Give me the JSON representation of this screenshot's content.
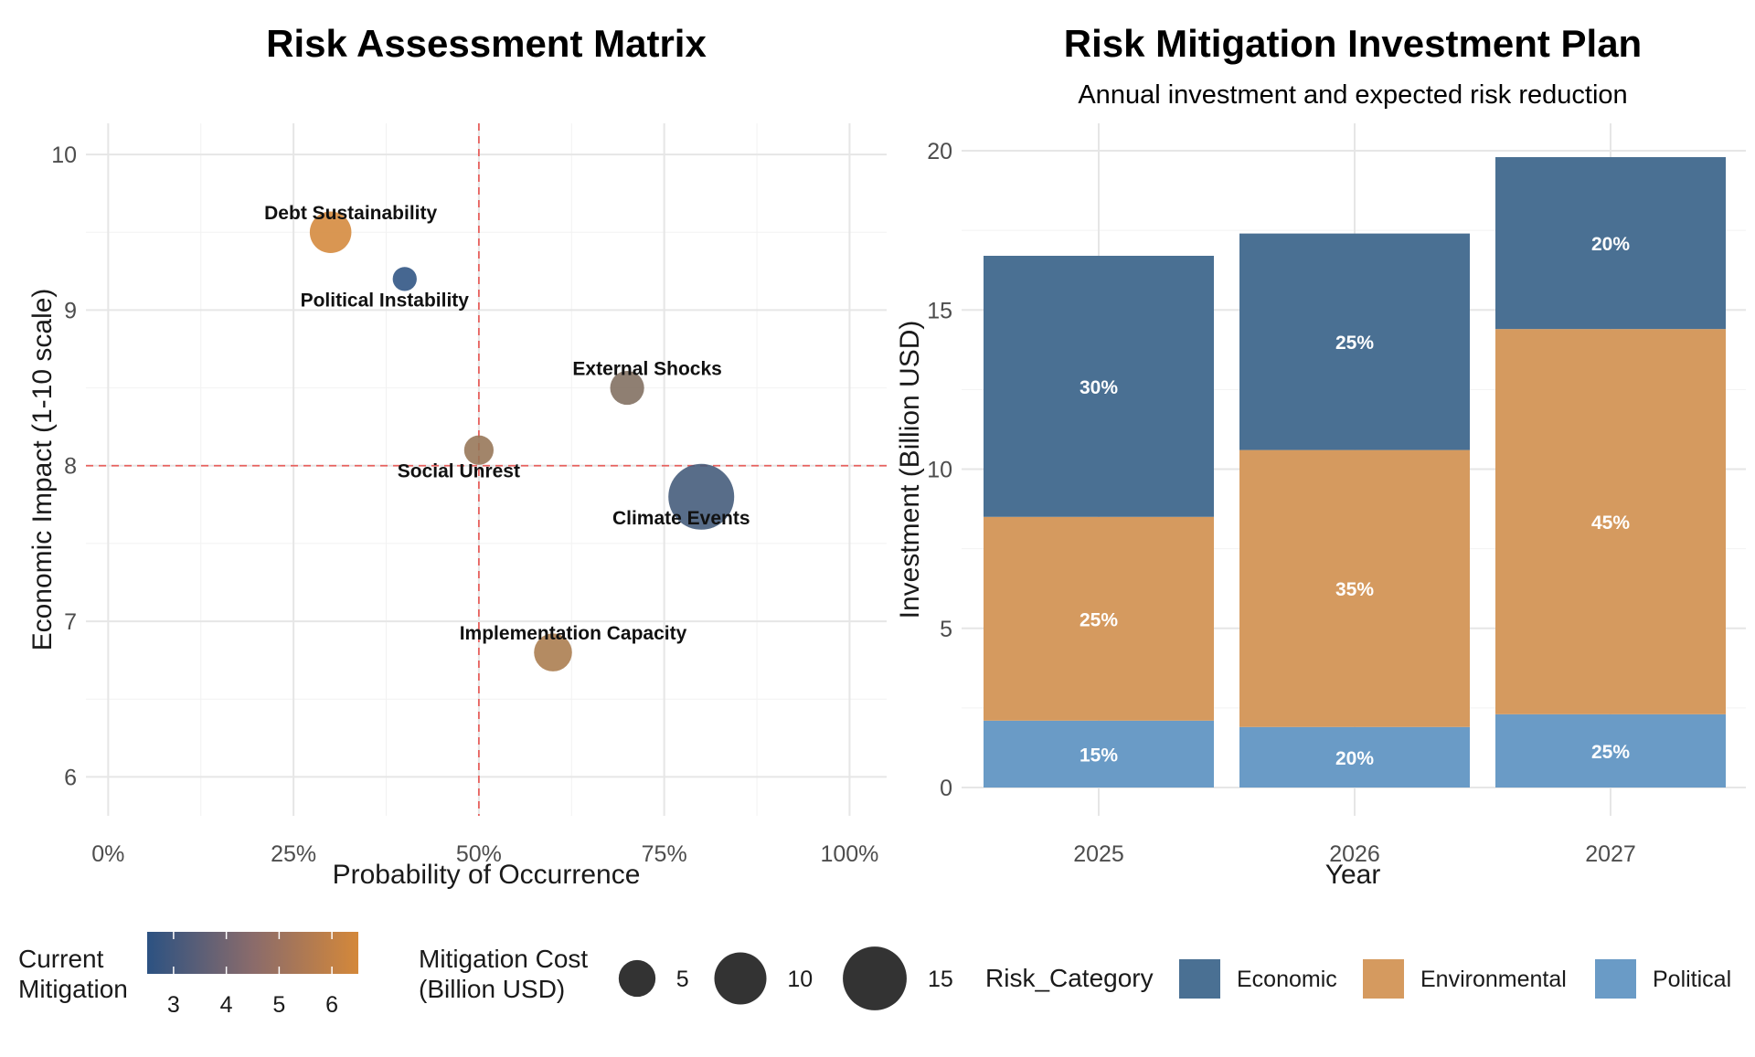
{
  "chart_data": [
    {
      "type": "scatter",
      "title": "Risk Assessment Matrix",
      "xlabel": "Probability of Occurrence",
      "ylabel": "Economic Impact (1-10 scale)",
      "xlim": [
        -0.03,
        1.05
      ],
      "ylim": [
        5.75,
        10.2
      ],
      "x_ticks": [
        0,
        0.25,
        0.5,
        0.75,
        1.0
      ],
      "x_tick_labels": [
        "0%",
        "25%",
        "50%",
        "75%",
        "100%"
      ],
      "y_ticks": [
        6,
        7,
        8,
        9,
        10
      ],
      "y_tick_labels": [
        "6",
        "7",
        "8",
        "9",
        "10"
      ],
      "reference_lines": {
        "x": 0.5,
        "y": 8,
        "color": "#e8625f",
        "style": "dashed"
      },
      "points": [
        {
          "label": "Debt Sustainability",
          "x": 0.3,
          "y": 9.5,
          "cost": 6,
          "mitigation": 6.5,
          "label_pos": "above"
        },
        {
          "label": "Political Instability",
          "x": 0.4,
          "y": 9.2,
          "cost": 2,
          "mitigation": 2.5,
          "label_pos": "below"
        },
        {
          "label": "External Shocks",
          "x": 0.7,
          "y": 8.5,
          "cost": 4,
          "mitigation": 4.5,
          "label_pos": "above"
        },
        {
          "label": "Social Unrest",
          "x": 0.5,
          "y": 8.1,
          "cost": 3,
          "mitigation": 5.0,
          "label_pos": "below"
        },
        {
          "label": "Climate Events",
          "x": 0.8,
          "y": 7.8,
          "cost": 15,
          "mitigation": 3.0,
          "label_pos": "below"
        },
        {
          "label": "Implementation Capacity",
          "x": 0.6,
          "y": 6.8,
          "cost": 5,
          "mitigation": 5.5,
          "label_pos": "above"
        }
      ],
      "color_legend": {
        "title_lines": [
          "Current",
          "Mitigation"
        ],
        "min": 2.5,
        "max": 6.5,
        "low_color": "#2c5282",
        "high_color": "#d4883a",
        "ticks": [
          3,
          4,
          5,
          6
        ],
        "tick_labels": [
          "3",
          "4",
          "5",
          "6"
        ]
      },
      "size_legend": {
        "title_lines": [
          "Mitigation Cost",
          "(Billion USD)"
        ],
        "values": [
          5,
          10,
          15
        ],
        "labels": [
          "5",
          "10",
          "15"
        ]
      }
    },
    {
      "type": "bar",
      "stacked": true,
      "title": "Risk Mitigation Investment Plan",
      "subtitle": "Annual investment and expected risk reduction",
      "xlabel": "Year",
      "ylabel": "Investment (Billion USD)",
      "categories": [
        "2025",
        "2026",
        "2027"
      ],
      "ylim": [
        0,
        20.5
      ],
      "y_ticks": [
        0,
        5,
        10,
        15,
        20
      ],
      "y_tick_labels": [
        "0",
        "5",
        "10",
        "15",
        "20"
      ],
      "series": [
        {
          "name": "Political",
          "color": "#6a9bc6",
          "values": [
            2.1,
            1.9,
            2.3
          ],
          "labels": [
            "15%",
            "20%",
            "25%"
          ]
        },
        {
          "name": "Environmental",
          "color": "#d59a5f",
          "values": [
            6.4,
            8.7,
            12.1
          ],
          "labels": [
            "25%",
            "35%",
            "45%"
          ]
        },
        {
          "name": "Economic",
          "color": "#4a7093",
          "values": [
            8.2,
            6.8,
            5.4
          ],
          "labels": [
            "30%",
            "25%",
            "20%"
          ]
        }
      ],
      "legend": {
        "title": "Risk_Category",
        "entries": [
          {
            "name": "Economic",
            "color": "#4a7093"
          },
          {
            "name": "Environmental",
            "color": "#d59a5f"
          },
          {
            "name": "Political",
            "color": "#6a9bc6"
          }
        ]
      }
    }
  ]
}
